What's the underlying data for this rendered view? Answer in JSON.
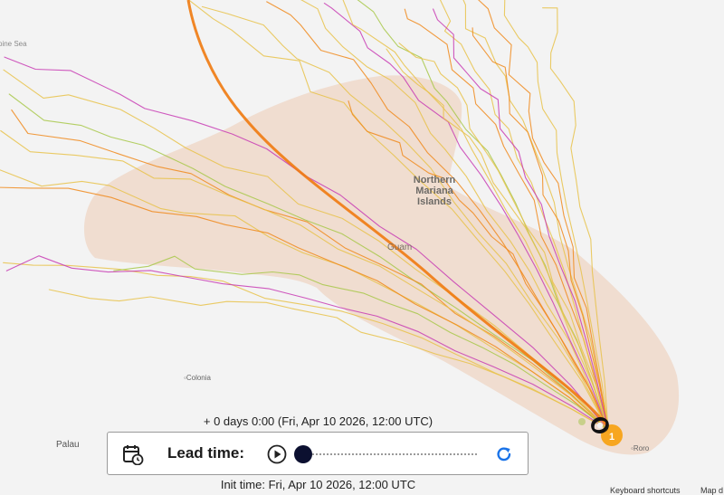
{
  "map": {
    "labels": {
      "sea": "pine Sea",
      "region": "Northern Mariana Islands",
      "guam": "Guam",
      "colonia": "◦Colonia",
      "palau": "Palau",
      "roro": "◦Roro"
    },
    "footer": {
      "keyboard_shortcuts": "Keyboard shortcuts",
      "map_data": "Map d"
    },
    "colors": {
      "background": "#f3f3f3",
      "cone": "#eccbb3",
      "track_yellow": "#e8c24a",
      "track_orange": "#f08a1c",
      "track_magenta": "#c83cb4",
      "track_green": "#a8c84a",
      "ensemble_mean": "#f07a10"
    },
    "storm_marker_icon": "hurricane-icon",
    "storm_marker_label": "1"
  },
  "controls": {
    "lead_offset": "+ 0 days 0:00  (Fri, Apr 10 2026, 12:00 UTC)",
    "lead_time_label": "Lead time:",
    "slider_progress": 0.0,
    "init_time": "Init time: Fri, Apr 10 2026, 12:00 UTC",
    "icons": {
      "calendar": "calendar-clock-icon",
      "play": "play-icon",
      "reset": "refresh-icon"
    },
    "accent": "#1a73e8"
  }
}
